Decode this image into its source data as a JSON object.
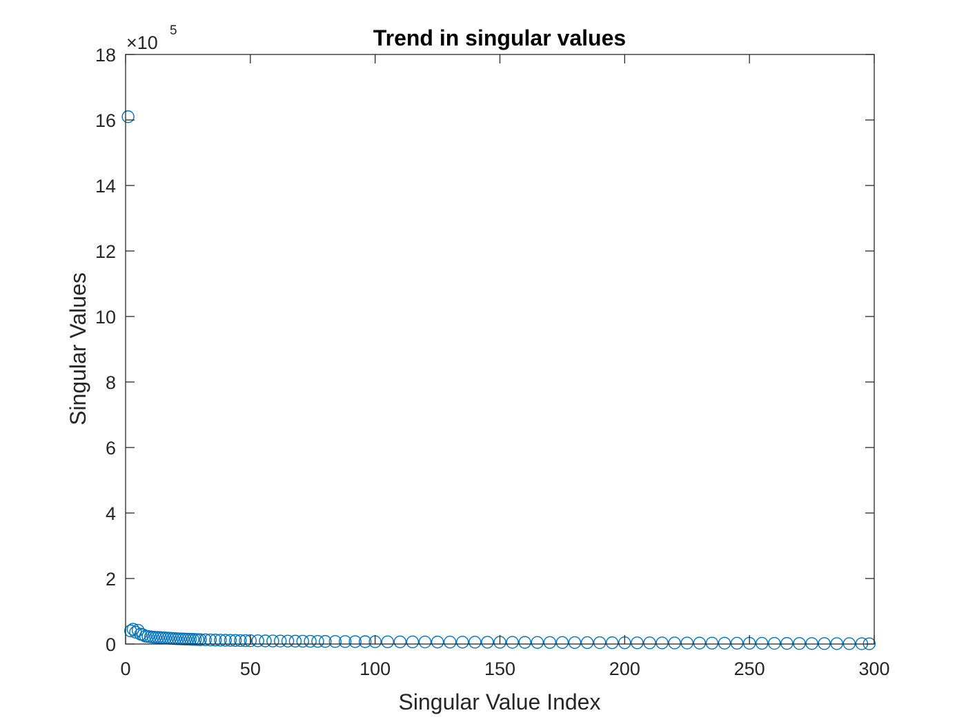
{
  "chart_data": {
    "type": "scatter",
    "title": "Trend in singular values",
    "xlabel": "Singular Value Index",
    "ylabel": "Singular Values",
    "y_multiplier_base": "×10",
    "y_multiplier_power": "5",
    "y_scale_factor": 100000,
    "xlim": [
      0,
      300
    ],
    "ylim": [
      0,
      1800000
    ],
    "x_ticks": [
      0,
      50,
      100,
      150,
      200,
      250,
      300
    ],
    "x_tick_labels": [
      "0",
      "50",
      "100",
      "150",
      "200",
      "250",
      "300"
    ],
    "y_ticks": [
      0,
      200000,
      400000,
      600000,
      800000,
      1000000,
      1200000,
      1400000,
      1600000,
      1800000
    ],
    "y_tick_labels": [
      "0",
      "2",
      "4",
      "6",
      "8",
      "10",
      "12",
      "14",
      "16",
      "18"
    ],
    "grid": false,
    "marker": "open-circle",
    "marker_color": "#0072BD",
    "series": [
      {
        "x": [
          1,
          2,
          3,
          4,
          5,
          6,
          7,
          8,
          9,
          10,
          11,
          12,
          13,
          14,
          15,
          16,
          17,
          18,
          19,
          20,
          21,
          22,
          23,
          24,
          25,
          26,
          27,
          28,
          29,
          30,
          32,
          34,
          36,
          38,
          40,
          42,
          44,
          46,
          48,
          50,
          53,
          56,
          59,
          62,
          65,
          68,
          71,
          74,
          77,
          80,
          84,
          88,
          92,
          96,
          100,
          105,
          110,
          115,
          120,
          125,
          130,
          135,
          140,
          145,
          150,
          155,
          160,
          165,
          170,
          175,
          180,
          185,
          190,
          195,
          200,
          205,
          210,
          215,
          220,
          225,
          230,
          235,
          240,
          245,
          250,
          255,
          260,
          265,
          270,
          275,
          280,
          285,
          290,
          295,
          298
        ],
        "values": [
          1610000,
          40000,
          45000,
          36000,
          42000,
          30000,
          28000,
          24000,
          23000,
          22000,
          21000,
          20500,
          20000,
          19500,
          19000,
          18500,
          18000,
          17500,
          17000,
          16500,
          16000,
          15700,
          15400,
          15100,
          14800,
          14500,
          14200,
          13900,
          13600,
          13300,
          12900,
          12500,
          12100,
          11700,
          11400,
          11100,
          10800,
          10500,
          10300,
          10100,
          9800,
          9500,
          9300,
          9100,
          8900,
          8700,
          8500,
          8300,
          8100,
          7900,
          7700,
          7500,
          7300,
          7100,
          6900,
          6700,
          6500,
          6350,
          6200,
          6050,
          5900,
          5750,
          5600,
          5450,
          5300,
          5150,
          5000,
          4850,
          4700,
          4550,
          4400,
          4250,
          4100,
          3950,
          3800,
          3650,
          3500,
          3350,
          3200,
          3050,
          2900,
          2750,
          2600,
          2450,
          2300,
          2150,
          2000,
          1850,
          1700,
          1550,
          1400,
          1250,
          1100,
          950,
          700
        ]
      }
    ]
  }
}
